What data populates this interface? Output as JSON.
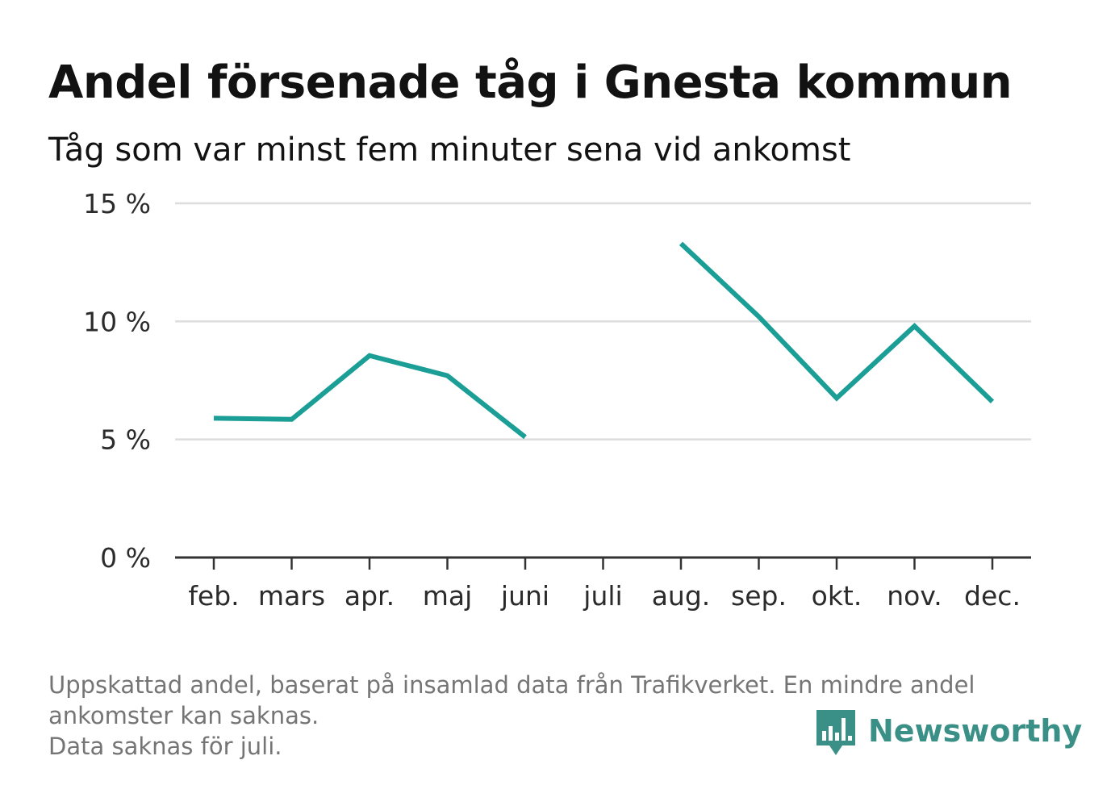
{
  "title": "Andel försenade tåg i Gnesta kommun",
  "subtitle": "Tåg som var minst fem minuter sena vid ankomst",
  "footnote": {
    "line1": "Uppskattad andel, baserat på insamlad data från Trafikverket. En mindre andel",
    "line2": "ankomster kan saknas.",
    "line3": "Data saknas för juli."
  },
  "brand": {
    "name": "Newsworthy",
    "icon": "newsworthy-logo-icon",
    "color": "#3a8f86"
  },
  "colors": {
    "line": "#1a9e96",
    "grid": "#dddddd",
    "axis": "#333333"
  },
  "chart_data": {
    "type": "line",
    "title": "Andel försenade tåg i Gnesta kommun",
    "subtitle": "Tåg som var minst fem minuter sena vid ankomst",
    "categories": [
      "feb.",
      "mars",
      "apr.",
      "maj",
      "juni",
      "juli",
      "aug.",
      "sep.",
      "okt.",
      "nov.",
      "dec."
    ],
    "series": [
      {
        "values": [
          5.9,
          5.85,
          8.55,
          7.7,
          5.1,
          null,
          13.3,
          10.2,
          6.75,
          9.8,
          6.6
        ]
      }
    ],
    "yticks": [
      0,
      5,
      10,
      15
    ],
    "ytick_labels": [
      "0 %",
      "5 %",
      "10 %",
      "15 %"
    ],
    "ylim": [
      0,
      15
    ],
    "grid": true,
    "legend": "none"
  }
}
